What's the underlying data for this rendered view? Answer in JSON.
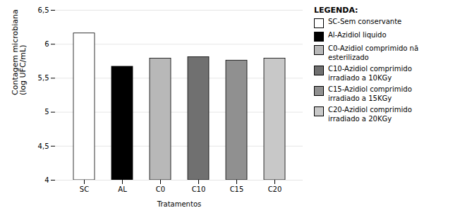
{
  "chart_data": {
    "type": "bar",
    "categories": [
      "SC",
      "AL",
      "C0",
      "C10",
      "C15",
      "C20"
    ],
    "values": [
      6.16,
      5.67,
      5.79,
      5.81,
      5.76,
      5.79
    ],
    "colors": [
      "white",
      "black",
      "#b8b8b8",
      "#707070",
      "#909090",
      "#c8c8c8"
    ],
    "xlabel": "Tratamentos",
    "ylabel": "Contagem microbiana\n(log UFC/mL)",
    "ylim": [
      4.0,
      6.5
    ],
    "yticks": [
      4,
      {
        "value": 4.5,
        "label": "4,5"
      },
      5,
      {
        "value": 5.5,
        "label": "5,5"
      },
      6,
      {
        "value": 6.5,
        "label": "6,5"
      }
    ],
    "grid": true,
    "legend": "right",
    "legend_title": "LEGENDA:",
    "legend_labels": [
      "SC-Sem conservante",
      "Al-Azidiol liquido",
      "C0-Azidiol comprimido nã\nesterilizado",
      "C10-Azidiol comprimido\nirradiado a 10KGy",
      "C15-Azidiol comprimido\nirradiado a 15KGy",
      "C20-Azidiol comprimido\nirradiado a 20KGy"
    ]
  }
}
